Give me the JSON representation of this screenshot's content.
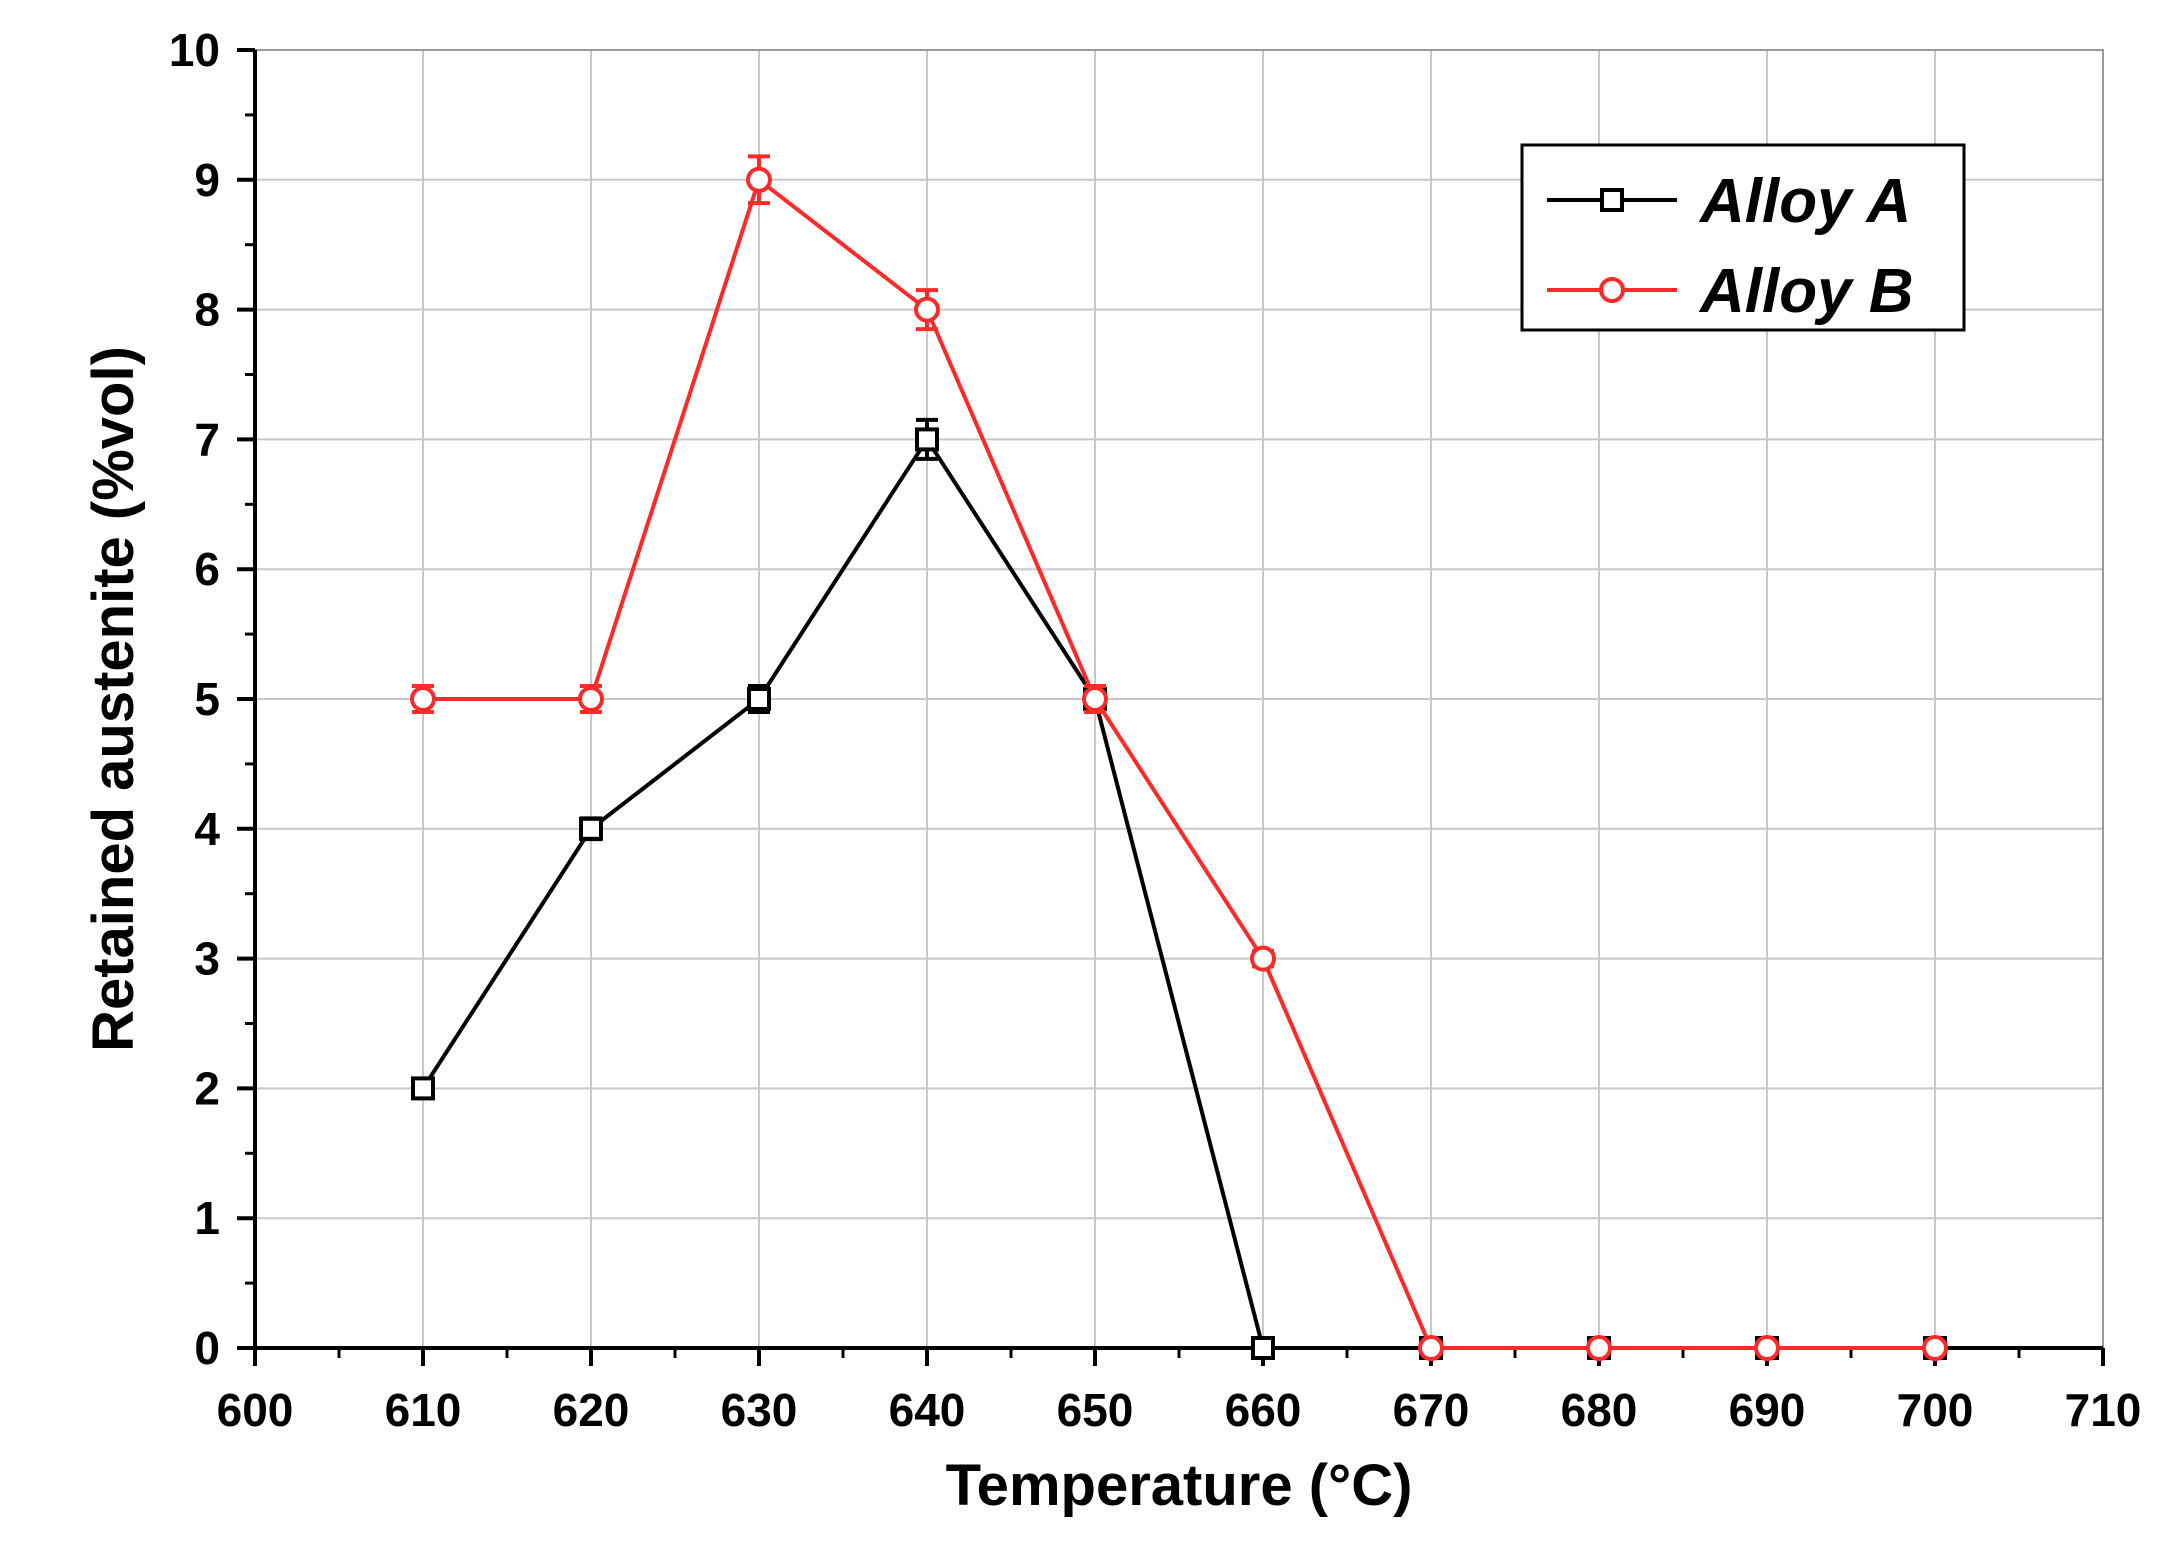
{
  "chart_data": {
    "type": "line",
    "xlabel": "Temperature (°C)",
    "ylabel": "Retained austenite (%vol)",
    "xlim": [
      600,
      710
    ],
    "ylim": [
      0,
      10
    ],
    "x_ticks": [
      "600",
      "610",
      "620",
      "630",
      "640",
      "650",
      "660",
      "670",
      "680",
      "690",
      "700",
      "710"
    ],
    "y_ticks": [
      "0",
      "1",
      "2",
      "3",
      "4",
      "5",
      "6",
      "7",
      "8",
      "9",
      "10"
    ],
    "grid": true,
    "legend_position": "top-right",
    "series": [
      {
        "name": "Alloy A",
        "color": "#000000",
        "marker": "square",
        "x": [
          610,
          620,
          630,
          640,
          650,
          660,
          670,
          680,
          690,
          700
        ],
        "y": [
          2,
          4,
          5,
          7,
          5,
          0,
          0,
          0,
          0,
          0
        ],
        "error": [
          0.03,
          0.08,
          0.1,
          0.15,
          0.1,
          0.03,
          0.02,
          0.02,
          0.02,
          0.02
        ]
      },
      {
        "name": "Alloy B",
        "color": "#ff2a2a",
        "marker": "circle",
        "x": [
          610,
          620,
          630,
          640,
          650,
          660,
          670,
          680,
          690,
          700
        ],
        "y": [
          5,
          5,
          9,
          8,
          5,
          3,
          0,
          0,
          0,
          0
        ],
        "error": [
          0.1,
          0.1,
          0.18,
          0.15,
          0.1,
          0.06,
          0.03,
          0.02,
          0.02,
          0.02
        ]
      }
    ]
  }
}
